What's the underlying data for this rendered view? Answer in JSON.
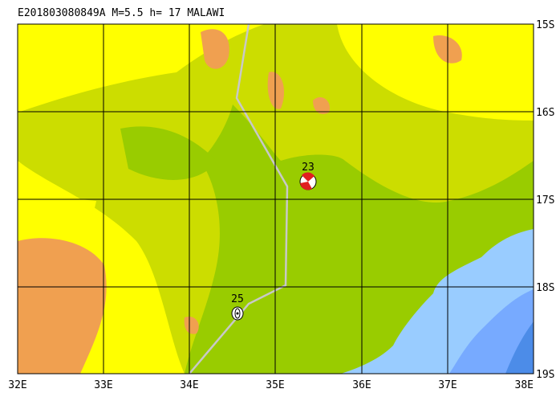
{
  "title": "E201803080849A  M=5.5  h= 17  MALAWI",
  "lon_labels": [
    "32E",
    "33E",
    "34E",
    "35E",
    "36E",
    "37E",
    "38E"
  ],
  "lat_labels": [
    "15S",
    "16S",
    "17S",
    "18S",
    "19S"
  ],
  "events": [
    {
      "label": "23"
    },
    {
      "label": "25"
    }
  ]
}
